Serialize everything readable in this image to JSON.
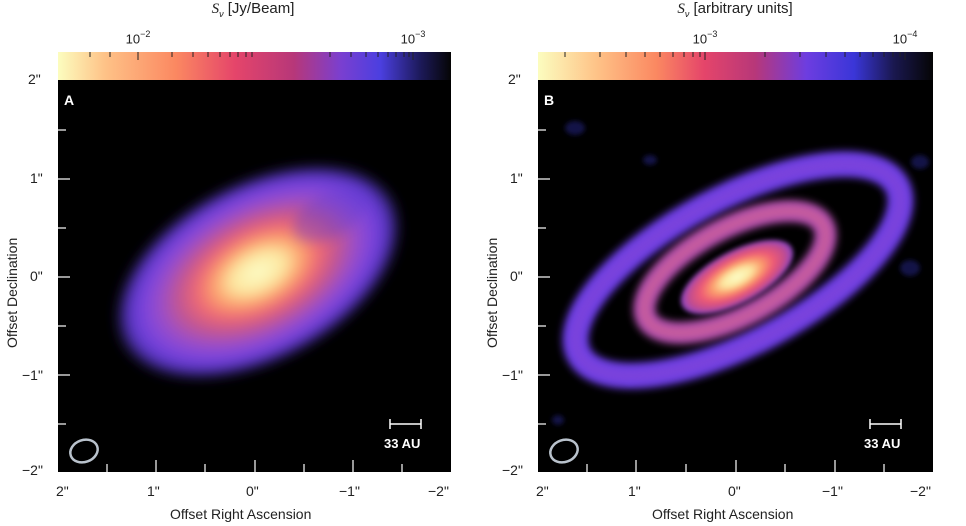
{
  "figure": {
    "panels": [
      {
        "id": "A",
        "panel_label": "A",
        "colorbar": {
          "title_symbol": "S",
          "title_subscript": "ν",
          "title_unit": "[Jy/Beam]",
          "tick_labels": [
            {
              "base": "10",
              "exp": "−2"
            },
            {
              "base": "10",
              "exp": "−3"
            }
          ],
          "colormap": "magma-like (light yellow → pink → purple → blue → black)"
        },
        "ylabel": "Offset Declination",
        "xlabel": "Offset Right Ascension",
        "yticks": [
          "2\"",
          "1\"",
          "0\"",
          "−1\"",
          "−2\""
        ],
        "xticks": [
          "2\"",
          "1\"",
          "0\"",
          "−1\"",
          "−2\""
        ],
        "scalebar_label": "33 AU",
        "beam_icon": "beam-ellipse-icon"
      },
      {
        "id": "B",
        "panel_label": "B",
        "colorbar": {
          "title_symbol": "S",
          "title_subscript": "ν",
          "title_unit": "[arbitrary units]",
          "tick_labels": [
            {
              "base": "10",
              "exp": "−3"
            },
            {
              "base": "10",
              "exp": "−4"
            }
          ],
          "colormap": "magma-like (light yellow → pink → purple → blue → black)"
        },
        "ylabel": "Offset Declination",
        "xlabel": "Offset Right Ascension",
        "yticks": [
          "2\"",
          "1\"",
          "0\"",
          "−1\"",
          "−2\""
        ],
        "xticks": [
          "2\"",
          "1\"",
          "0\"",
          "−1\"",
          "−2\""
        ],
        "scalebar_label": "33 AU",
        "beam_icon": "beam-ellipse-icon"
      }
    ]
  }
}
